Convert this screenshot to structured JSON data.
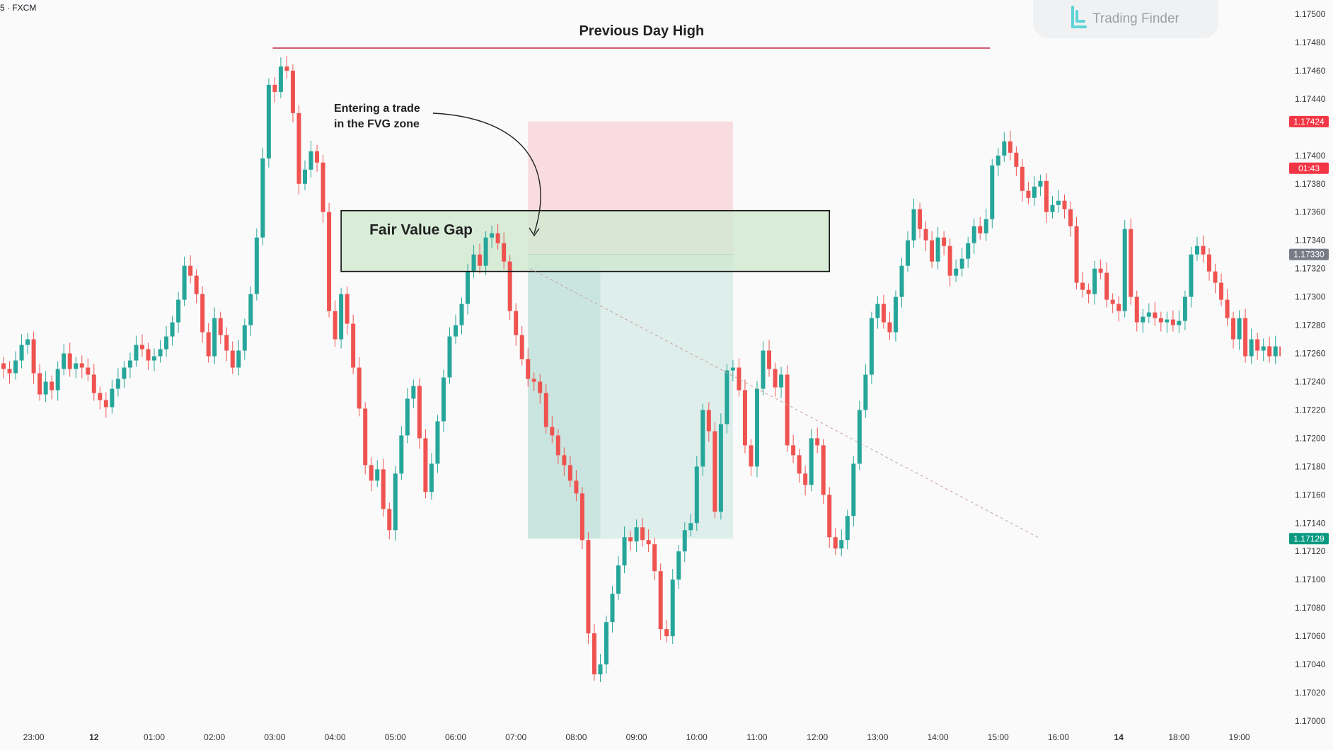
{
  "symbol_label": "5 · FXCM",
  "watermark": {
    "text": "Trading Finder",
    "icon": "trading-finder-logo-icon",
    "color": "#5fd3d6"
  },
  "colors": {
    "bull": "#26a69a",
    "bear": "#ef5350",
    "pdh_line": "#c0344f",
    "fvg_fill": "#cfe8cf",
    "sl_fill": "#f7d6d9",
    "tp_fill": "#d3eae5",
    "price_red": "#f23645",
    "price_gray": "#787b86",
    "price_green": "#089981"
  },
  "chart_data": {
    "type": "candlestick",
    "ylim": [
      1.17,
      1.175
    ],
    "y_ticks": [
      "1.17500",
      "1.17480",
      "1.17460",
      "1.17440",
      "1.17400",
      "1.17380",
      "1.17360",
      "1.17340",
      "1.17320",
      "1.17300",
      "1.17280",
      "1.17260",
      "1.17240",
      "1.17220",
      "1.17200",
      "1.17180",
      "1.17160",
      "1.17140",
      "1.17120",
      "1.17100",
      "1.17080",
      "1.17060",
      "1.17040",
      "1.17020",
      "1.17000"
    ],
    "x_ticks": [
      {
        "label": "23:00",
        "bar": 5,
        "bold": false
      },
      {
        "label": "12",
        "bar": 15,
        "bold": true
      },
      {
        "label": "01:00",
        "bar": 25,
        "bold": false
      },
      {
        "label": "02:00",
        "bar": 35,
        "bold": false
      },
      {
        "label": "03:00",
        "bar": 45,
        "bold": false
      },
      {
        "label": "04:00",
        "bar": 55,
        "bold": false
      },
      {
        "label": "05:00",
        "bar": 65,
        "bold": false
      },
      {
        "label": "06:00",
        "bar": 75,
        "bold": false
      },
      {
        "label": "07:00",
        "bar": 85,
        "bold": false
      },
      {
        "label": "08:00",
        "bar": 95,
        "bold": false
      },
      {
        "label": "09:00",
        "bar": 105,
        "bold": false
      },
      {
        "label": "10:00",
        "bar": 115,
        "bold": false
      },
      {
        "label": "11:00",
        "bar": 125,
        "bold": false
      },
      {
        "label": "12:00",
        "bar": 135,
        "bold": false
      },
      {
        "label": "13:00",
        "bar": 145,
        "bold": false
      },
      {
        "label": "14:00",
        "bar": 155,
        "bold": false
      },
      {
        "label": "15:00",
        "bar": 165,
        "bold": false
      },
      {
        "label": "16:00",
        "bar": 175,
        "bold": false
      },
      {
        "label": "14",
        "bar": 185,
        "bold": true
      },
      {
        "label": "18:00",
        "bar": 195,
        "bold": false
      },
      {
        "label": "19:00",
        "bar": 205,
        "bold": false
      }
    ],
    "price_tags": [
      {
        "text": "1.17424",
        "value": 1.17424,
        "color": "#f23645"
      },
      {
        "text": "01:43",
        "value": 1.17391,
        "color": "#f23645"
      },
      {
        "text": "1.17330",
        "value": 1.1733,
        "color": "#787b86"
      },
      {
        "text": "1.17129",
        "value": 1.17129,
        "color": "#089981"
      }
    ],
    "closes": [
      1.17249,
      1.17246,
      1.17255,
      1.17266,
      1.1727,
      1.17246,
      1.17231,
      1.1724,
      1.17234,
      1.17249,
      1.1726,
      1.17249,
      1.17253,
      1.1725,
      1.17245,
      1.17232,
      1.17227,
      1.17222,
      1.17235,
      1.17242,
      1.1725,
      1.17255,
      1.17266,
      1.17263,
      1.17255,
      1.17258,
      1.17263,
      1.17272,
      1.17282,
      1.17298,
      1.17322,
      1.17315,
      1.17302,
      1.17275,
      1.17258,
      1.17285,
      1.17273,
      1.17262,
      1.1725,
      1.17262,
      1.1728,
      1.17302,
      1.17342,
      1.17398,
      1.1745,
      1.17445,
      1.17463,
      1.1746,
      1.1743,
      1.1738,
      1.1739,
      1.17403,
      1.17395,
      1.1736,
      1.1729,
      1.1727,
      1.17302,
      1.17281,
      1.1725,
      1.17221,
      1.17181,
      1.1717,
      1.17178,
      1.1715,
      1.17135,
      1.17175,
      1.17202,
      1.17228,
      1.17237,
      1.172,
      1.17162,
      1.17182,
      1.17212,
      1.17243,
      1.17272,
      1.1728,
      1.17295,
      1.17318,
      1.1733,
      1.17322,
      1.17342,
      1.17345,
      1.17338,
      1.17325,
      1.1729,
      1.17273,
      1.17256,
      1.17242,
      1.1724,
      1.17232,
      1.17208,
      1.17202,
      1.17188,
      1.17181,
      1.1717,
      1.17161,
      1.17128,
      1.17062,
      1.17033,
      1.1704,
      1.1707,
      1.1709,
      1.1711,
      1.1713,
      1.17127,
      1.17137,
      1.17128,
      1.17125,
      1.17106,
      1.17065,
      1.1706,
      1.171,
      1.1712,
      1.17135,
      1.1714,
      1.1718,
      1.1722,
      1.17205,
      1.17148,
      1.1721,
      1.17248,
      1.1725,
      1.17234,
      1.17195,
      1.1718,
      1.17235,
      1.17262,
      1.17249,
      1.17236,
      1.17245,
      1.17195,
      1.17188,
      1.17175,
      1.17167,
      1.172,
      1.17195,
      1.1716,
      1.1713,
      1.17122,
      1.17128,
      1.17145,
      1.17182,
      1.1722,
      1.17245,
      1.17285,
      1.17295,
      1.17282,
      1.17275,
      1.173,
      1.17322,
      1.1734,
      1.17362,
      1.17348,
      1.1734,
      1.17325,
      1.17342,
      1.17336,
      1.17315,
      1.1732,
      1.17327,
      1.17338,
      1.1735,
      1.17345,
      1.17355,
      1.17393,
      1.174,
      1.1741,
      1.17402,
      1.17392,
      1.17375,
      1.1737,
      1.17378,
      1.17382,
      1.1736,
      1.17365,
      1.17368,
      1.17362,
      1.1735,
      1.1731,
      1.17305,
      1.17302,
      1.1732,
      1.17317,
      1.17298,
      1.17295,
      1.1729,
      1.17348,
      1.173,
      1.17282,
      1.17286,
      1.17289,
      1.17285,
      1.17282,
      1.17284,
      1.1728,
      1.17283,
      1.173,
      1.1733,
      1.17336,
      1.1733,
      1.17318,
      1.1731,
      1.17298,
      1.17285,
      1.1727,
      1.17285,
      1.17258,
      1.1727,
      1.17262,
      1.17265,
      1.17258,
      1.17265,
      1.17258,
      1.17249,
      1.17249
    ],
    "previous_day_high": {
      "label": "Previous Day High",
      "value": 1.17476,
      "from_bar": 45,
      "to_bar": 162
    },
    "fvg_zone": {
      "label": "Fair Value Gap",
      "top": 1.17361,
      "bottom": 1.17318,
      "from_bar": 56,
      "to_bar": 137
    },
    "trade": {
      "from_bar": 87,
      "to_bar": 121,
      "entry": 1.1733,
      "stop_loss": 1.17424,
      "take_profit": 1.17129,
      "mid_bar": 99
    },
    "annotation": {
      "line1": "Entering a trade",
      "line2": "in the FVG zone"
    }
  }
}
